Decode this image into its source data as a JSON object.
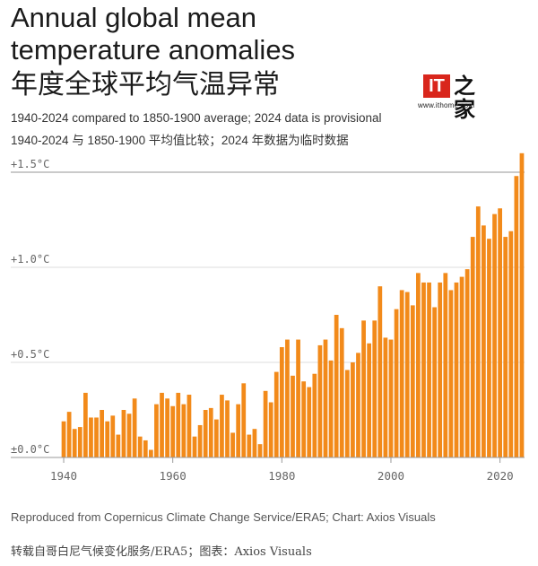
{
  "header": {
    "title": "Annual global mean temperature anomalies",
    "title_cn": "年度全球平均气温异常",
    "subtitle": "1940-2024 compared to 1850-1900 average; 2024 data is provisional",
    "subtitle_cn": "1940-2024 与 1850-1900 平均值比较；2024 年数据为临时数据"
  },
  "logo": {
    "mark": "IT",
    "cn": "之家",
    "url": "www.ithome.com"
  },
  "footer": {
    "source": "Reproduced from Copernicus Climate Change Service/ERA5; Chart: Axios Visuals",
    "source_cn": "转载自哥白尼气候变化服务/ERA5；图表：Axios Visuals"
  },
  "colors": {
    "bar": "#F28A1A",
    "grid": "#dddddd",
    "reference_line": "#aaaaaa",
    "axis_text": "#666666"
  },
  "chart_data": {
    "type": "bar",
    "x": [
      1940,
      1941,
      1942,
      1943,
      1944,
      1945,
      1946,
      1947,
      1948,
      1949,
      1950,
      1951,
      1952,
      1953,
      1954,
      1955,
      1956,
      1957,
      1958,
      1959,
      1960,
      1961,
      1962,
      1963,
      1964,
      1965,
      1966,
      1967,
      1968,
      1969,
      1970,
      1971,
      1972,
      1973,
      1974,
      1975,
      1976,
      1977,
      1978,
      1979,
      1980,
      1981,
      1982,
      1983,
      1984,
      1985,
      1986,
      1987,
      1988,
      1989,
      1990,
      1991,
      1992,
      1993,
      1994,
      1995,
      1996,
      1997,
      1998,
      1999,
      2000,
      2001,
      2002,
      2003,
      2004,
      2005,
      2006,
      2007,
      2008,
      2009,
      2010,
      2011,
      2012,
      2013,
      2014,
      2015,
      2016,
      2017,
      2018,
      2019,
      2020,
      2021,
      2022,
      2023,
      2024
    ],
    "values": [
      0.19,
      0.24,
      0.15,
      0.16,
      0.34,
      0.21,
      0.21,
      0.25,
      0.19,
      0.22,
      0.12,
      0.25,
      0.23,
      0.31,
      0.11,
      0.09,
      0.04,
      0.28,
      0.34,
      0.31,
      0.27,
      0.34,
      0.28,
      0.33,
      0.11,
      0.17,
      0.25,
      0.26,
      0.2,
      0.33,
      0.3,
      0.13,
      0.28,
      0.39,
      0.12,
      0.15,
      0.07,
      0.35,
      0.29,
      0.45,
      0.58,
      0.62,
      0.43,
      0.62,
      0.4,
      0.37,
      0.44,
      0.59,
      0.62,
      0.51,
      0.75,
      0.68,
      0.46,
      0.5,
      0.55,
      0.72,
      0.6,
      0.72,
      0.9,
      0.63,
      0.62,
      0.78,
      0.88,
      0.87,
      0.8,
      0.97,
      0.92,
      0.92,
      0.79,
      0.92,
      0.97,
      0.88,
      0.92,
      0.95,
      0.99,
      1.16,
      1.32,
      1.22,
      1.15,
      1.28,
      1.31,
      1.16,
      1.19,
      1.48,
      1.6
    ],
    "y_ticks": [
      "±0.0°C",
      "+0.5°C",
      "+1.0°C",
      "+1.5°C"
    ],
    "x_ticks": [
      "1940",
      "1960",
      "1980",
      "2000",
      "2020"
    ],
    "ylim": [
      0,
      1.6
    ],
    "reference_line": 1.5,
    "grid": true
  }
}
